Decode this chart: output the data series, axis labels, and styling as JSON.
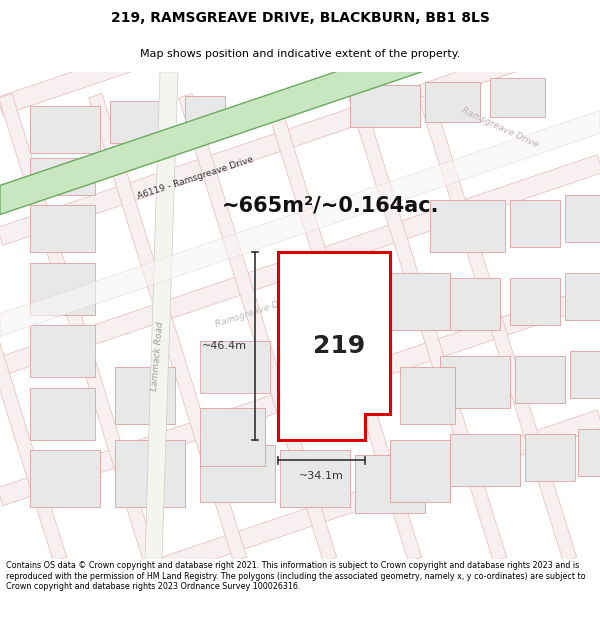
{
  "title": "219, RAMSGREAVE DRIVE, BLACKBURN, BB1 8LS",
  "subtitle": "Map shows position and indicative extent of the property.",
  "footer": "Contains OS data © Crown copyright and database right 2021. This information is subject to Crown copyright and database rights 2023 and is reproduced with the permission of HM Land Registry. The polygons (including the associated geometry, namely x, y co-ordinates) are subject to Crown copyright and database rights 2023 Ordnance Survey 100026316.",
  "area_text": "~665m²/~0.164ac.",
  "property_number": "219",
  "dim_width": "~34.1m",
  "dim_height": "~46.4m",
  "bg_color": "#ffffff",
  "map_bg": "#ffffff",
  "green_road_fill": "#c8e6c0",
  "green_road_edge": "#6aaa60",
  "plot_stroke": "#dd0000",
  "plot_fill": "#ffffff",
  "road_label_gray": "#aaaaaa",
  "building_fill": "#e8e8e8",
  "building_edge": "#e0a0a0",
  "faint_line": "#f0c0c0",
  "dim_arrow_color": "#333333",
  "area_text_color": "#111111",
  "num_color": "#222222"
}
